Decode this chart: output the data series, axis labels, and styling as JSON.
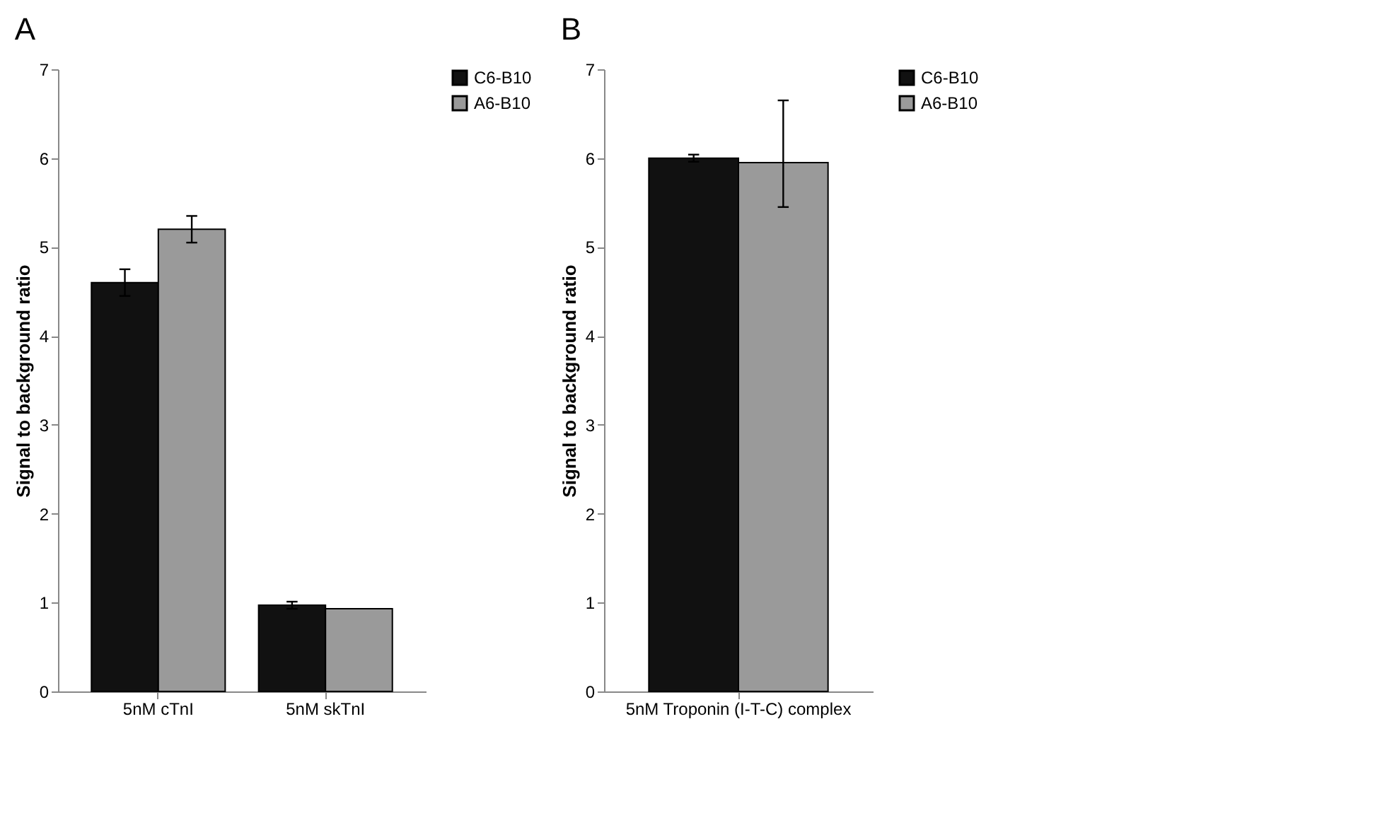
{
  "chart_data": [
    {
      "type": "bar",
      "annotations": [
        "A"
      ],
      "ylabel": "Signal to background ratio",
      "categories": [
        "5nM cTnI",
        "5nM skTnI"
      ],
      "series": [
        {
          "name": "C6-B10",
          "color": "#111111",
          "values": [
            4.6,
            0.97
          ],
          "errors": [
            0.15,
            0.04
          ]
        },
        {
          "name": "A6-B10",
          "color": "#9a9a9a",
          "values": [
            5.2,
            0.93
          ],
          "errors": [
            0.15,
            null
          ]
        }
      ],
      "ylim": [
        0,
        7
      ],
      "yticks": [
        0,
        1,
        2,
        3,
        4,
        5,
        6,
        7
      ],
      "grid": false,
      "legend": "right"
    },
    {
      "type": "bar",
      "annotations": [
        "B"
      ],
      "ylabel": "Signal to background ratio",
      "categories": [
        "5nM Troponin (I-T-C) complex"
      ],
      "series": [
        {
          "name": "C6-B10",
          "color": "#111111",
          "values": [
            6.0
          ],
          "errors": [
            0.04
          ]
        },
        {
          "name": "A6-B10",
          "color": "#9a9a9a",
          "values": [
            5.95
          ],
          "errors": [
            [
              5.45,
              6.65
            ]
          ]
        }
      ],
      "ylim": [
        0,
        7
      ],
      "yticks": [
        0,
        1,
        2,
        3,
        4,
        5,
        6,
        7
      ],
      "grid": false,
      "legend": "right"
    }
  ]
}
